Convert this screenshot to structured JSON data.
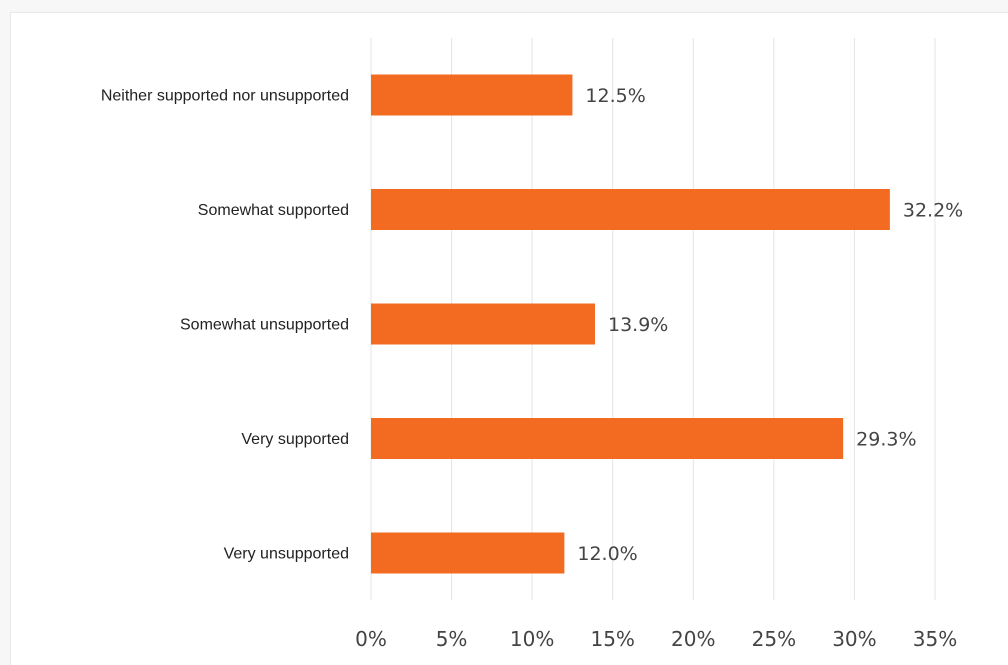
{
  "chart_data": {
    "type": "bar",
    "orientation": "horizontal",
    "title": "",
    "xlabel": "",
    "ylabel": "",
    "categories": [
      "Neither supported nor unsupported",
      "Somewhat supported",
      "Somewhat unsupported",
      "Very supported",
      "Very unsupported"
    ],
    "values": [
      12.5,
      32.2,
      13.9,
      29.3,
      12.0
    ],
    "value_labels": [
      "12.5%",
      "32.2%",
      "13.9%",
      "29.3%",
      "12.0%"
    ],
    "xlim": [
      0,
      35
    ],
    "x_ticks": [
      0,
      5,
      10,
      15,
      20,
      25,
      30,
      35
    ],
    "x_tick_labels": [
      "0%",
      "5%",
      "10%",
      "15%",
      "20%",
      "25%",
      "30%",
      "35%"
    ],
    "grid": "vertical",
    "legend": "none",
    "colors": {
      "bar": "#f26b21",
      "grid": "#e4e4e4",
      "text": "#222222",
      "value_text": "#444444"
    }
  }
}
